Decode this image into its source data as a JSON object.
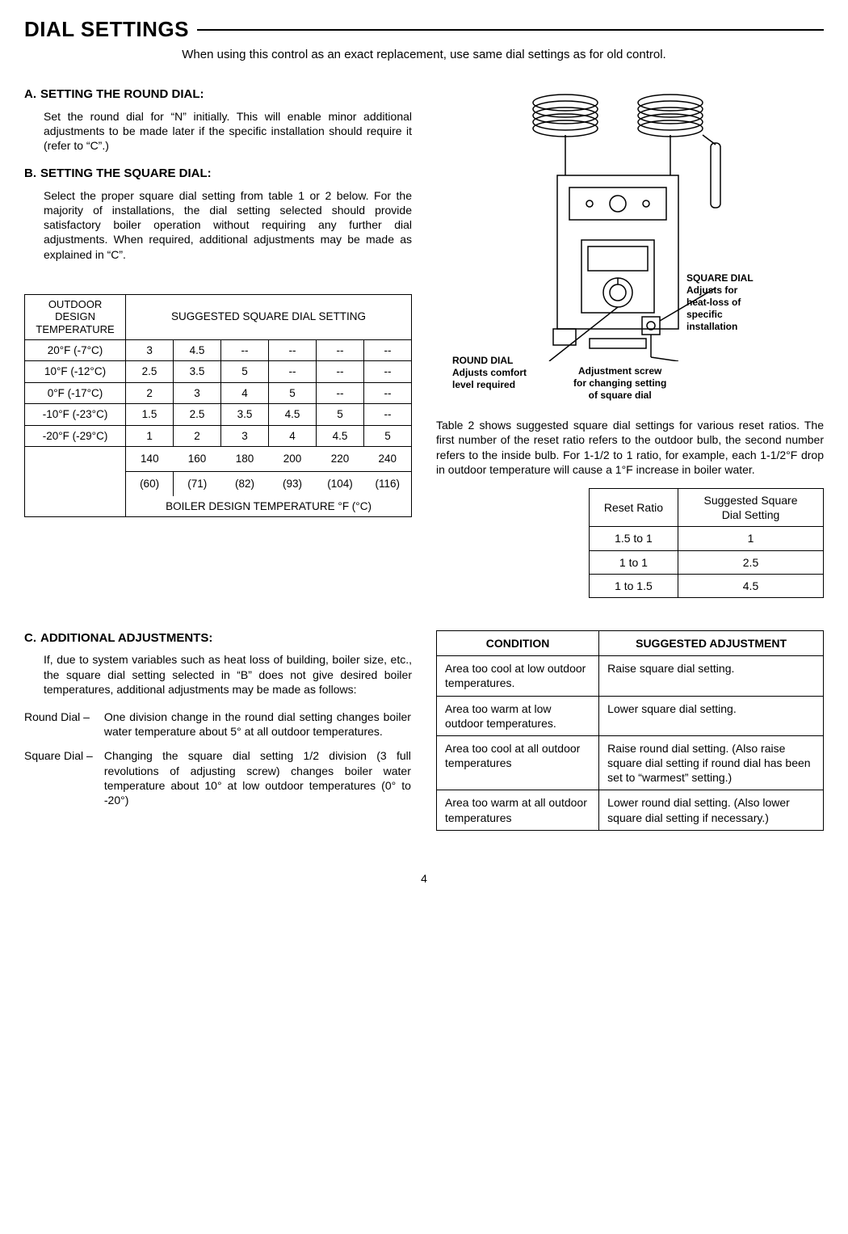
{
  "title": "DIAL SETTINGS",
  "subtitle": "When using this control as an exact replacement, use same dial settings as for old control.",
  "sectionA": {
    "label": "A.",
    "heading": "SETTING THE ROUND DIAL:",
    "body": "Set the round dial for “N” initially. This will enable minor additional adjustments to be made later if the specific installation should require it (refer to “C”.)"
  },
  "sectionB": {
    "label": "B.",
    "heading": "SETTING THE SQUARE DIAL:",
    "body": "Select the proper square dial setting from table 1 or 2 below. For the majority of installations, the dial setting selected should provide satisfactory boiler operation without requiring any further dial adjustments. When required, additional adjustments may be made as explained in “C”."
  },
  "table1": {
    "leftHeader": "OUTDOOR DESIGN TEMPERATURE",
    "rightHeader": "SUGGESTED SQUARE DIAL SETTING",
    "rows": [
      {
        "t": "20°F (-7°C)",
        "v": [
          "3",
          "4.5",
          "--",
          "--",
          "--",
          "--"
        ]
      },
      {
        "t": "10°F (-12°C)",
        "v": [
          "2.5",
          "3.5",
          "5",
          "--",
          "--",
          "--"
        ]
      },
      {
        "t": "0°F (-17°C)",
        "v": [
          "2",
          "3",
          "4",
          "5",
          "--",
          "--"
        ]
      },
      {
        "t": "-10°F (-23°C)",
        "v": [
          "1.5",
          "2.5",
          "3.5",
          "4.5",
          "5",
          "--"
        ]
      },
      {
        "t": "-20°F (-29°C)",
        "v": [
          "1",
          "2",
          "3",
          "4",
          "4.5",
          "5"
        ]
      }
    ],
    "tempsF": [
      "140",
      "160",
      "180",
      "200",
      "220",
      "240"
    ],
    "tempsC": [
      "(60)",
      "(71)",
      "(82)",
      "(93)",
      "(104)",
      "(116)"
    ],
    "bottomLabel": "BOILER DESIGN TEMPERATURE °F (°C)"
  },
  "callouts": {
    "round": "ROUND DIAL\nAdjusts comfort\nlevel required",
    "square": "SQUARE DIAL\nAdjusts for\nheat-loss of\nspecific\ninstallation",
    "screw": "Adjustment screw\nfor changing setting\nof square dial"
  },
  "table2Intro": "Table 2 shows suggested square dial settings for various reset ratios. The first number of the reset ratio refers to the outdoor bulb, the second number refers to the inside bulb. For 1-1/2 to 1 ratio, for example, each 1-1/2°F drop in outdoor temperature will cause a 1°F increase in boiler water.",
  "table2": {
    "h1": "Reset Ratio",
    "h2": "Suggested Square Dial Setting",
    "rows": [
      {
        "a": "1.5 to 1",
        "b": "1"
      },
      {
        "a": "1 to 1",
        "b": "2.5"
      },
      {
        "a": "1 to 1.5",
        "b": "4.5"
      }
    ]
  },
  "sectionC": {
    "label": "C.",
    "heading": "ADDITIONAL ADJUSTMENTS:",
    "intro": "If, due to system variables such as heat loss of building, boiler size, etc., the square dial setting selected in “B” does not give desired boiler temperatures, additional adjustments may be made as follows:",
    "round": {
      "label": "Round Dial –",
      "body": "One division change in the round dial setting changes boiler water temperature about 5° at all outdoor temperatures."
    },
    "square": {
      "label": "Square Dial –",
      "body": "Changing the square dial setting 1/2 division (3 full revolutions of adjusting screw) changes boiler water temperature about 10° at low outdoor temperatures (0° to -20°)"
    }
  },
  "table3": {
    "h1": "CONDITION",
    "h2": "SUGGESTED ADJUSTMENT",
    "rows": [
      {
        "c": "Area too cool at low outdoor temperatures.",
        "a": "Raise square dial setting."
      },
      {
        "c": "Area too warm at low outdoor temperatures.",
        "a": "Lower square dial setting."
      },
      {
        "c": "Area too cool at all outdoor temperatures",
        "a": "Raise round dial setting. (Also raise square dial setting if round dial has been set to “warmest” setting.)"
      },
      {
        "c": "Area too warm at all outdoor temperatures",
        "a": "Lower round dial setting. (Also lower square dial setting if necessary.)"
      }
    ]
  },
  "pageNumber": "4"
}
